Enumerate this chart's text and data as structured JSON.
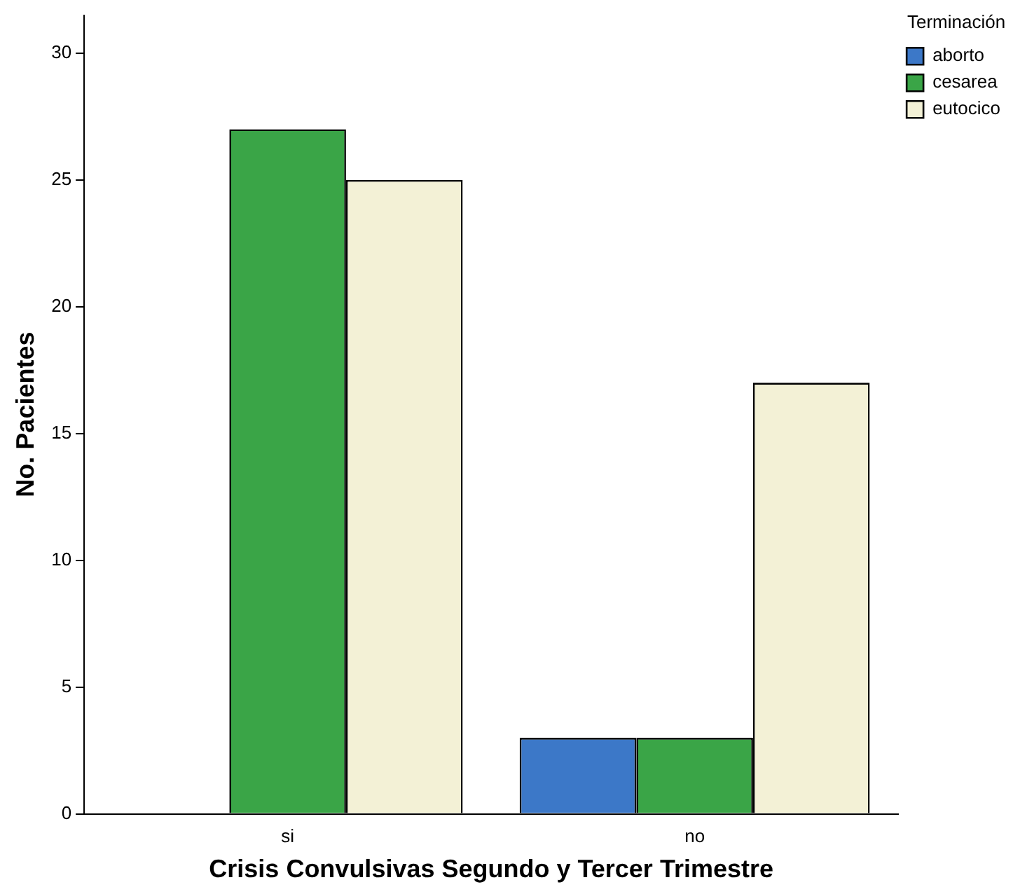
{
  "chart_data": {
    "type": "bar",
    "xlabel": "Crisis Convulsivas Segundo y Tercer Trimestre",
    "ylabel": "No. Pacientes",
    "legend_title": "Terminación",
    "categories": [
      "si",
      "no"
    ],
    "series": [
      {
        "name": "aborto",
        "color": "#3c78c8",
        "values": [
          0,
          3
        ]
      },
      {
        "name": "cesarea",
        "color": "#3aa547",
        "values": [
          27,
          3
        ]
      },
      {
        "name": "eutocico",
        "color": "#f3f1d6",
        "values": [
          25,
          17
        ]
      }
    ],
    "ylim": [
      0,
      31.5
    ],
    "yticks": [
      0,
      5,
      10,
      15,
      20,
      25,
      30
    ],
    "grid": false,
    "legend": "top right"
  }
}
